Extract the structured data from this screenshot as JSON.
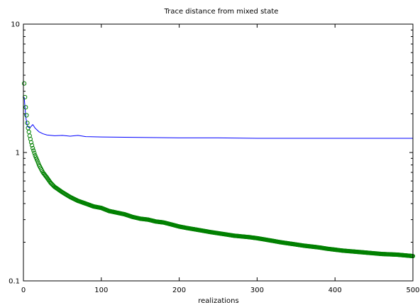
{
  "chart_data": {
    "type": "line",
    "title": "Trace distance from mixed state",
    "xlabel": "realizations",
    "ylabel": "",
    "xlim": [
      0,
      500
    ],
    "ylim": [
      0.1,
      10
    ],
    "yscale": "log",
    "grid": false,
    "legend": "none",
    "x_ticks": [
      0,
      100,
      200,
      300,
      400,
      500
    ],
    "x_tick_labels": [
      "0",
      "100",
      "200",
      "300",
      "400",
      "500"
    ],
    "y_ticks": [
      0.1,
      1,
      10
    ],
    "y_tick_labels": [
      "0.1",
      "1",
      "10"
    ],
    "series": [
      {
        "style": "line",
        "color": "#0000ff",
        "x": [
          1,
          3,
          5,
          8,
          12,
          15,
          20,
          25,
          30,
          40,
          50,
          60,
          70,
          80,
          100,
          150,
          200,
          250,
          300,
          350,
          400,
          450,
          500
        ],
        "y": [
          2.7,
          1.9,
          1.6,
          1.55,
          1.65,
          1.55,
          1.45,
          1.4,
          1.37,
          1.35,
          1.36,
          1.34,
          1.36,
          1.33,
          1.32,
          1.31,
          1.3,
          1.3,
          1.29,
          1.29,
          1.29,
          1.29,
          1.29
        ]
      },
      {
        "style": "markers",
        "marker": "open-circle",
        "color": "#008000",
        "x": [
          1,
          2,
          3,
          4,
          5,
          6,
          8,
          10,
          12,
          15,
          18,
          20,
          25,
          30,
          35,
          40,
          50,
          60,
          70,
          80,
          90,
          100,
          110,
          120,
          130,
          140,
          150,
          160,
          170,
          180,
          190,
          200,
          210,
          220,
          230,
          240,
          250,
          260,
          270,
          280,
          290,
          300,
          310,
          320,
          330,
          340,
          350,
          360,
          370,
          380,
          390,
          400,
          410,
          420,
          430,
          440,
          450,
          460,
          470,
          480,
          490,
          500
        ],
        "y": [
          3.45,
          2.7,
          2.25,
          1.95,
          1.7,
          1.55,
          1.35,
          1.2,
          1.08,
          0.95,
          0.86,
          0.8,
          0.7,
          0.64,
          0.58,
          0.54,
          0.49,
          0.45,
          0.42,
          0.4,
          0.38,
          0.37,
          0.35,
          0.34,
          0.33,
          0.315,
          0.305,
          0.3,
          0.29,
          0.285,
          0.275,
          0.265,
          0.258,
          0.252,
          0.246,
          0.24,
          0.235,
          0.23,
          0.225,
          0.222,
          0.219,
          0.215,
          0.21,
          0.205,
          0.2,
          0.196,
          0.192,
          0.188,
          0.185,
          0.182,
          0.178,
          0.175,
          0.172,
          0.17,
          0.168,
          0.166,
          0.164,
          0.162,
          0.161,
          0.16,
          0.158,
          0.156
        ]
      }
    ]
  }
}
